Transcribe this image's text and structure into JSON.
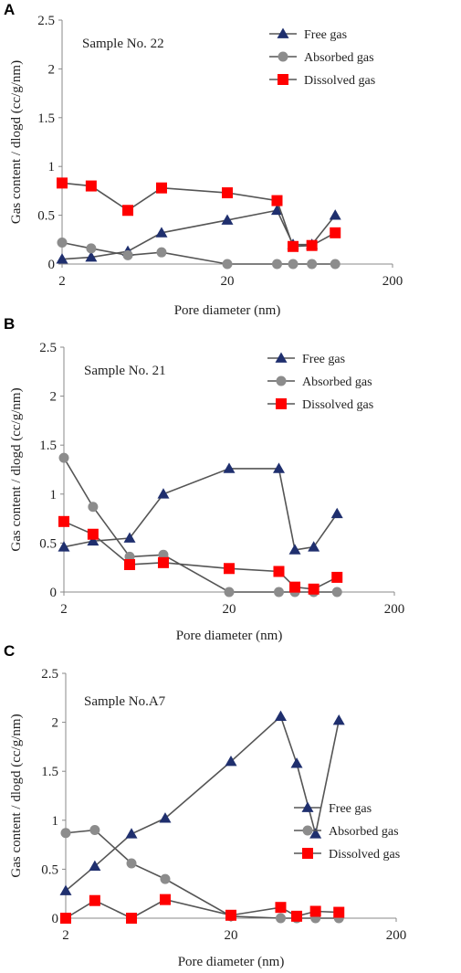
{
  "chart_data": [
    {
      "type": "line",
      "panel": "A",
      "annotation": "Sample No. 22",
      "xlabel": "Pore diameter (nm)",
      "ylabel": "Gas content / dlogd (cc/g/nm)",
      "xscale": "log",
      "xlim": [
        2,
        200
      ],
      "ylim": [
        0,
        2.5
      ],
      "xticks": [
        "2",
        "20",
        "200"
      ],
      "yticks": [
        "0",
        "0.5",
        "1",
        "1.5",
        "2",
        "2.5"
      ],
      "legend_position": "top-right",
      "grid": false,
      "series": [
        {
          "name": "Free gas",
          "color": "#1f2f6e",
          "marker": "triangle",
          "x": [
            2,
            3,
            5,
            8,
            20,
            40,
            50,
            65,
            90
          ],
          "y": [
            0.05,
            0.07,
            0.13,
            0.32,
            0.45,
            0.55,
            0.2,
            0.2,
            0.5
          ]
        },
        {
          "name": "Absorbed gas",
          "color": "#8c8c8c",
          "marker": "circle",
          "x": [
            2,
            3,
            5,
            8,
            20,
            40,
            50,
            65,
            90
          ],
          "y": [
            0.22,
            0.16,
            0.09,
            0.12,
            0.0,
            0.0,
            0.0,
            0.0,
            0.0
          ]
        },
        {
          "name": "Dissolved gas",
          "color": "#ff0000",
          "marker": "square",
          "x": [
            2,
            3,
            5,
            8,
            20,
            40,
            50,
            65,
            90
          ],
          "y": [
            0.83,
            0.8,
            0.55,
            0.78,
            0.73,
            0.65,
            0.18,
            0.19,
            0.32
          ]
        }
      ]
    },
    {
      "type": "line",
      "panel": "B",
      "annotation": "Sample No. 21",
      "xlabel": "Pore diameter (nm)",
      "ylabel": "Gas content / dlogd (cc/g/nm)",
      "xscale": "log",
      "xlim": [
        2,
        200
      ],
      "ylim": [
        0,
        2.5
      ],
      "xticks": [
        "2",
        "20",
        "200"
      ],
      "yticks": [
        "0",
        "0.5",
        "1",
        "1.5",
        "2",
        "2.5"
      ],
      "legend_position": "top-right",
      "grid": false,
      "series": [
        {
          "name": "Free gas",
          "color": "#1f2f6e",
          "marker": "triangle",
          "x": [
            2,
            3,
            5,
            8,
            20,
            40,
            50,
            65,
            90
          ],
          "y": [
            0.46,
            0.52,
            0.55,
            1.0,
            1.26,
            1.26,
            0.43,
            0.46,
            0.8
          ]
        },
        {
          "name": "Absorbed gas",
          "color": "#8c8c8c",
          "marker": "circle",
          "x": [
            2,
            3,
            5,
            8,
            20,
            40,
            50,
            65,
            90
          ],
          "y": [
            1.37,
            0.87,
            0.36,
            0.38,
            0.0,
            0.0,
            0.0,
            0.0,
            0.0
          ]
        },
        {
          "name": "Dissolved gas",
          "color": "#ff0000",
          "marker": "square",
          "x": [
            2,
            3,
            5,
            8,
            20,
            40,
            50,
            65,
            90
          ],
          "y": [
            0.72,
            0.59,
            0.28,
            0.3,
            0.24,
            0.21,
            0.05,
            0.03,
            0.15
          ]
        }
      ]
    },
    {
      "type": "line",
      "panel": "C",
      "annotation": "Sample No.A7",
      "xlabel": "Pore diameter (nm)",
      "ylabel": "Gas content / dlogd (cc/g/nm)",
      "xscale": "log",
      "xlim": [
        2,
        200
      ],
      "ylim": [
        0,
        2.5
      ],
      "xticks": [
        "2",
        "20",
        "200"
      ],
      "yticks": [
        "0",
        "0.5",
        "1",
        "1.5",
        "2",
        "2.5"
      ],
      "legend_position": "middle-right",
      "grid": false,
      "series": [
        {
          "name": "Free gas",
          "color": "#1f2f6e",
          "marker": "triangle",
          "x": [
            2,
            3,
            5,
            8,
            20,
            40,
            50,
            65,
            90
          ],
          "y": [
            0.28,
            0.53,
            0.86,
            1.02,
            1.6,
            2.06,
            1.58,
            0.86,
            2.02
          ]
        },
        {
          "name": "Absorbed gas",
          "color": "#8c8c8c",
          "marker": "circle",
          "x": [
            2,
            3,
            5,
            8,
            20,
            40,
            50,
            65,
            90
          ],
          "y": [
            0.87,
            0.9,
            0.56,
            0.4,
            0.02,
            0.0,
            0.0,
            0.0,
            0.0
          ]
        },
        {
          "name": "Dissolved gas",
          "color": "#ff0000",
          "marker": "square",
          "x": [
            2,
            3,
            5,
            8,
            20,
            40,
            50,
            65,
            90
          ],
          "y": [
            0.0,
            0.18,
            0.0,
            0.19,
            0.03,
            0.11,
            0.02,
            0.07,
            0.06
          ]
        }
      ]
    }
  ]
}
